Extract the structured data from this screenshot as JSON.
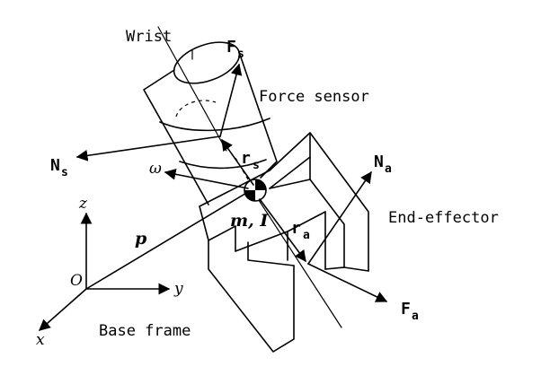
{
  "labels": {
    "wrist": "Wrist",
    "force_sensor": "Force sensor",
    "end_effector": "End-effector",
    "base_frame": "Base frame",
    "Fs_main": "F",
    "Fs_sub": "s",
    "Ns_main": "N",
    "Ns_sub": "s",
    "rs_main": "r",
    "rs_sub": "s",
    "Na_main": "N",
    "Na_sub": "a",
    "Fa_main": "F",
    "Fa_sub": "a",
    "ra_main": "r",
    "ra_sub": "a",
    "omega": "ω",
    "m_I": "m, I",
    "p": "p",
    "origin": "O",
    "axis_x": "x",
    "axis_y": "y",
    "axis_z": "z"
  }
}
